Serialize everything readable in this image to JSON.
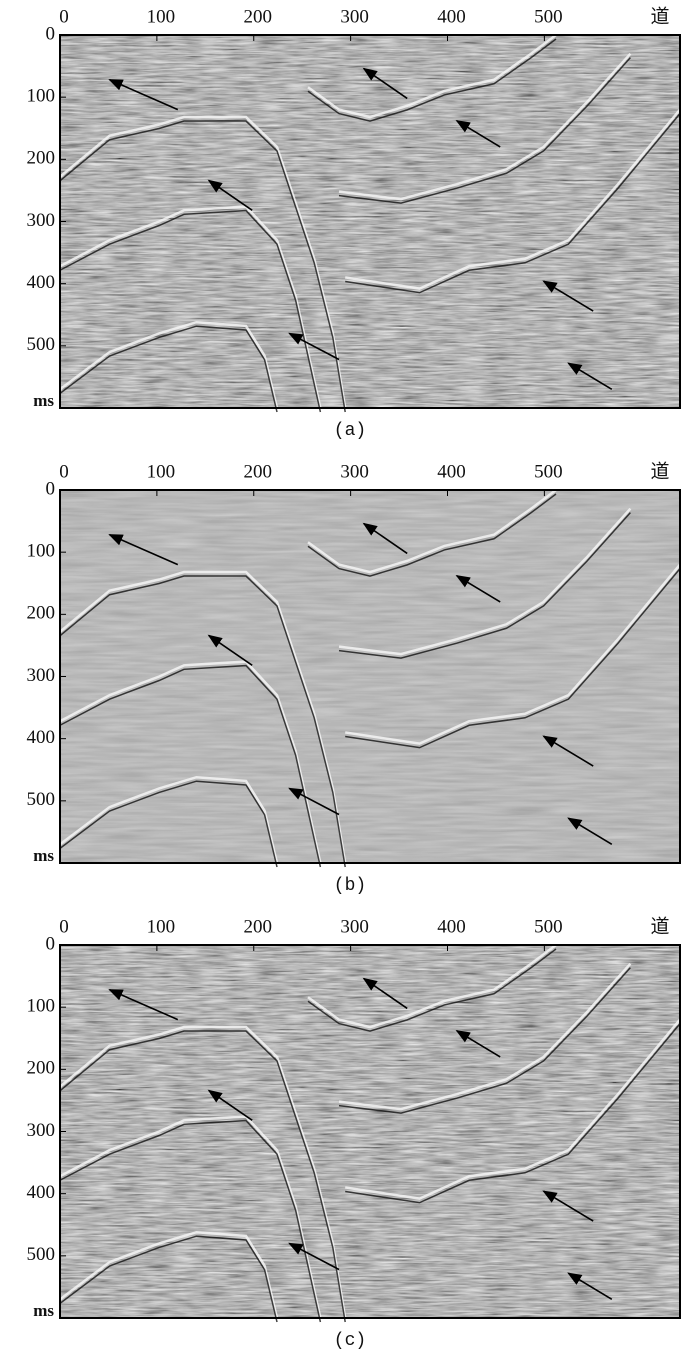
{
  "chart_data": [
    {
      "type": "seismic",
      "caption": "(a)",
      "x_label": "道",
      "y_label": "ms",
      "xlim": [
        0,
        640
      ],
      "ylim": [
        0,
        600
      ],
      "xticks": [
        0,
        100,
        200,
        300,
        400,
        500
      ],
      "yticks": [
        0,
        100,
        200,
        300,
        400,
        500
      ]
    },
    {
      "type": "seismic",
      "caption": "(b)",
      "x_label": "道",
      "y_label": "ms",
      "xlim": [
        0,
        640
      ],
      "ylim": [
        0,
        600
      ],
      "xticks": [
        0,
        100,
        200,
        300,
        400,
        500
      ],
      "yticks": [
        0,
        100,
        200,
        300,
        400,
        500
      ]
    },
    {
      "type": "seismic",
      "caption": "(c)",
      "x_label": "道",
      "y_label": "ms",
      "xlim": [
        0,
        640
      ],
      "ylim": [
        0,
        600
      ],
      "xticks": [
        0,
        100,
        200,
        300,
        400,
        500
      ],
      "yticks": [
        0,
        100,
        200,
        300,
        400,
        500
      ]
    }
  ]
}
